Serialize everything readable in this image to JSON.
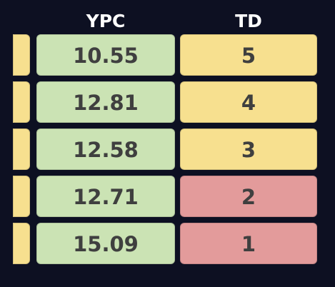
{
  "columns": {
    "ypc": "YPC",
    "td": "TD"
  },
  "colors": {
    "background": "#0d1022",
    "green": "#cbe3b4",
    "yellow": "#f7e08f",
    "red": "#e39b9b"
  },
  "rows": [
    {
      "ypc": "10.55",
      "td": "5",
      "stub_color": "yellow",
      "ypc_color": "green",
      "td_color": "yellow"
    },
    {
      "ypc": "12.81",
      "td": "4",
      "stub_color": "yellow",
      "ypc_color": "green",
      "td_color": "yellow"
    },
    {
      "ypc": "12.58",
      "td": "3",
      "stub_color": "yellow",
      "ypc_color": "green",
      "td_color": "yellow"
    },
    {
      "ypc": "12.71",
      "td": "2",
      "stub_color": "yellow",
      "ypc_color": "green",
      "td_color": "red"
    },
    {
      "ypc": "15.09",
      "td": "1",
      "stub_color": "yellow",
      "ypc_color": "green",
      "td_color": "red"
    }
  ]
}
